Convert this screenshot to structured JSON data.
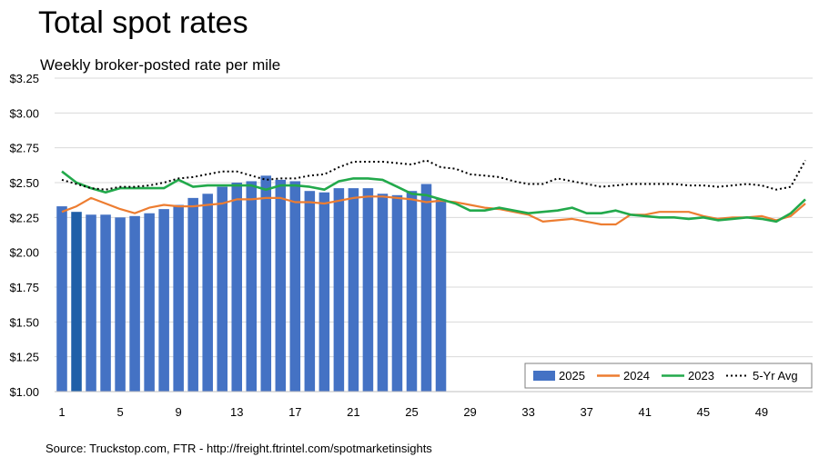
{
  "title": "Total spot rates",
  "subtitle": "Weekly broker-posted rate per mile",
  "source": "Source: Truckstop.com, FTR - http://freight.ftrintel.com/spotmarketinsights",
  "colors": {
    "bar_2025": "#4472C4",
    "bar_highlight": "#1F5FA8",
    "line_2024": "#ED7D31",
    "line_2023": "#22A94B",
    "line_5yr": "#000000",
    "grid": "#D9D9D9"
  },
  "chart_data": {
    "type": "bar",
    "ylim": [
      1.0,
      3.25
    ],
    "y_ticks": [
      1.0,
      1.25,
      1.5,
      1.75,
      2.0,
      2.25,
      2.5,
      2.75,
      3.0,
      3.25
    ],
    "y_tick_labels": [
      "$1.00",
      "$1.25",
      "$1.50",
      "$1.75",
      "$2.00",
      "$2.25",
      "$2.50",
      "$2.75",
      "$3.00",
      "$3.25"
    ],
    "x_range": [
      1,
      52
    ],
    "x_ticks": [
      1,
      5,
      9,
      13,
      17,
      21,
      25,
      29,
      33,
      37,
      41,
      45,
      49
    ],
    "x_tick_labels": [
      "1",
      "5",
      "9",
      "13",
      "17",
      "21",
      "25",
      "29",
      "33",
      "37",
      "41",
      "45",
      "49"
    ],
    "legend_position": "bottom-right",
    "highlight_week": 2,
    "series": [
      {
        "name": "2025",
        "type": "bar",
        "x": [
          1,
          2,
          3,
          4,
          5,
          6,
          7,
          8,
          9,
          10,
          11,
          12,
          13,
          14,
          15,
          16,
          17,
          18,
          19,
          20,
          21,
          22,
          23,
          24,
          25,
          26,
          27
        ],
        "values": [
          2.33,
          2.29,
          2.27,
          2.27,
          2.25,
          2.26,
          2.28,
          2.31,
          2.34,
          2.39,
          2.42,
          2.47,
          2.5,
          2.51,
          2.55,
          2.52,
          2.51,
          2.44,
          2.43,
          2.46,
          2.46,
          2.46,
          2.42,
          2.41,
          2.44,
          2.49,
          2.38
        ]
      },
      {
        "name": "2024",
        "type": "line",
        "x": [
          1,
          2,
          3,
          4,
          5,
          6,
          7,
          8,
          9,
          10,
          11,
          12,
          13,
          14,
          15,
          16,
          17,
          18,
          19,
          20,
          21,
          22,
          23,
          24,
          25,
          26,
          27,
          28,
          29,
          30,
          31,
          32,
          33,
          34,
          35,
          36,
          37,
          38,
          39,
          40,
          41,
          42,
          43,
          44,
          45,
          46,
          47,
          48,
          49,
          50,
          51,
          52
        ],
        "values": [
          2.29,
          2.33,
          2.39,
          2.35,
          2.31,
          2.28,
          2.32,
          2.34,
          2.33,
          2.33,
          2.34,
          2.35,
          2.38,
          2.38,
          2.39,
          2.39,
          2.36,
          2.36,
          2.35,
          2.37,
          2.39,
          2.4,
          2.4,
          2.39,
          2.38,
          2.36,
          2.37,
          2.36,
          2.34,
          2.32,
          2.31,
          2.29,
          2.27,
          2.22,
          2.23,
          2.24,
          2.22,
          2.2,
          2.2,
          2.27,
          2.27,
          2.29,
          2.29,
          2.29,
          2.26,
          2.24,
          2.25,
          2.25,
          2.26,
          2.23,
          2.26,
          2.35
        ]
      },
      {
        "name": "2023",
        "type": "line",
        "x": [
          1,
          2,
          3,
          4,
          5,
          6,
          7,
          8,
          9,
          10,
          11,
          12,
          13,
          14,
          15,
          16,
          17,
          18,
          19,
          20,
          21,
          22,
          23,
          24,
          25,
          26,
          27,
          28,
          29,
          30,
          31,
          32,
          33,
          34,
          35,
          36,
          37,
          38,
          39,
          40,
          41,
          42,
          43,
          44,
          45,
          46,
          47,
          48,
          49,
          50,
          51,
          52
        ],
        "values": [
          2.58,
          2.5,
          2.46,
          2.43,
          2.46,
          2.46,
          2.46,
          2.46,
          2.52,
          2.47,
          2.48,
          2.48,
          2.48,
          2.48,
          2.45,
          2.48,
          2.48,
          2.47,
          2.45,
          2.51,
          2.53,
          2.53,
          2.52,
          2.47,
          2.42,
          2.41,
          2.38,
          2.35,
          2.3,
          2.3,
          2.32,
          2.3,
          2.28,
          2.29,
          2.3,
          2.32,
          2.28,
          2.28,
          2.3,
          2.27,
          2.26,
          2.25,
          2.25,
          2.24,
          2.25,
          2.23,
          2.24,
          2.25,
          2.24,
          2.22,
          2.28,
          2.38
        ]
      },
      {
        "name": "5-Yr Avg",
        "type": "line",
        "x": [
          1,
          2,
          3,
          4,
          5,
          6,
          7,
          8,
          9,
          10,
          11,
          12,
          13,
          14,
          15,
          16,
          17,
          18,
          19,
          20,
          21,
          22,
          23,
          24,
          25,
          26,
          27,
          28,
          29,
          30,
          31,
          32,
          33,
          34,
          35,
          36,
          37,
          38,
          39,
          40,
          41,
          42,
          43,
          44,
          45,
          46,
          47,
          48,
          49,
          50,
          51,
          52
        ],
        "values": [
          2.52,
          2.49,
          2.46,
          2.45,
          2.47,
          2.47,
          2.48,
          2.5,
          2.53,
          2.54,
          2.56,
          2.58,
          2.58,
          2.55,
          2.52,
          2.53,
          2.53,
          2.55,
          2.56,
          2.61,
          2.65,
          2.65,
          2.65,
          2.64,
          2.63,
          2.66,
          2.61,
          2.6,
          2.56,
          2.55,
          2.54,
          2.51,
          2.49,
          2.49,
          2.53,
          2.51,
          2.49,
          2.47,
          2.48,
          2.49,
          2.49,
          2.49,
          2.49,
          2.48,
          2.48,
          2.47,
          2.48,
          2.49,
          2.48,
          2.45,
          2.47,
          2.66
        ]
      }
    ]
  }
}
